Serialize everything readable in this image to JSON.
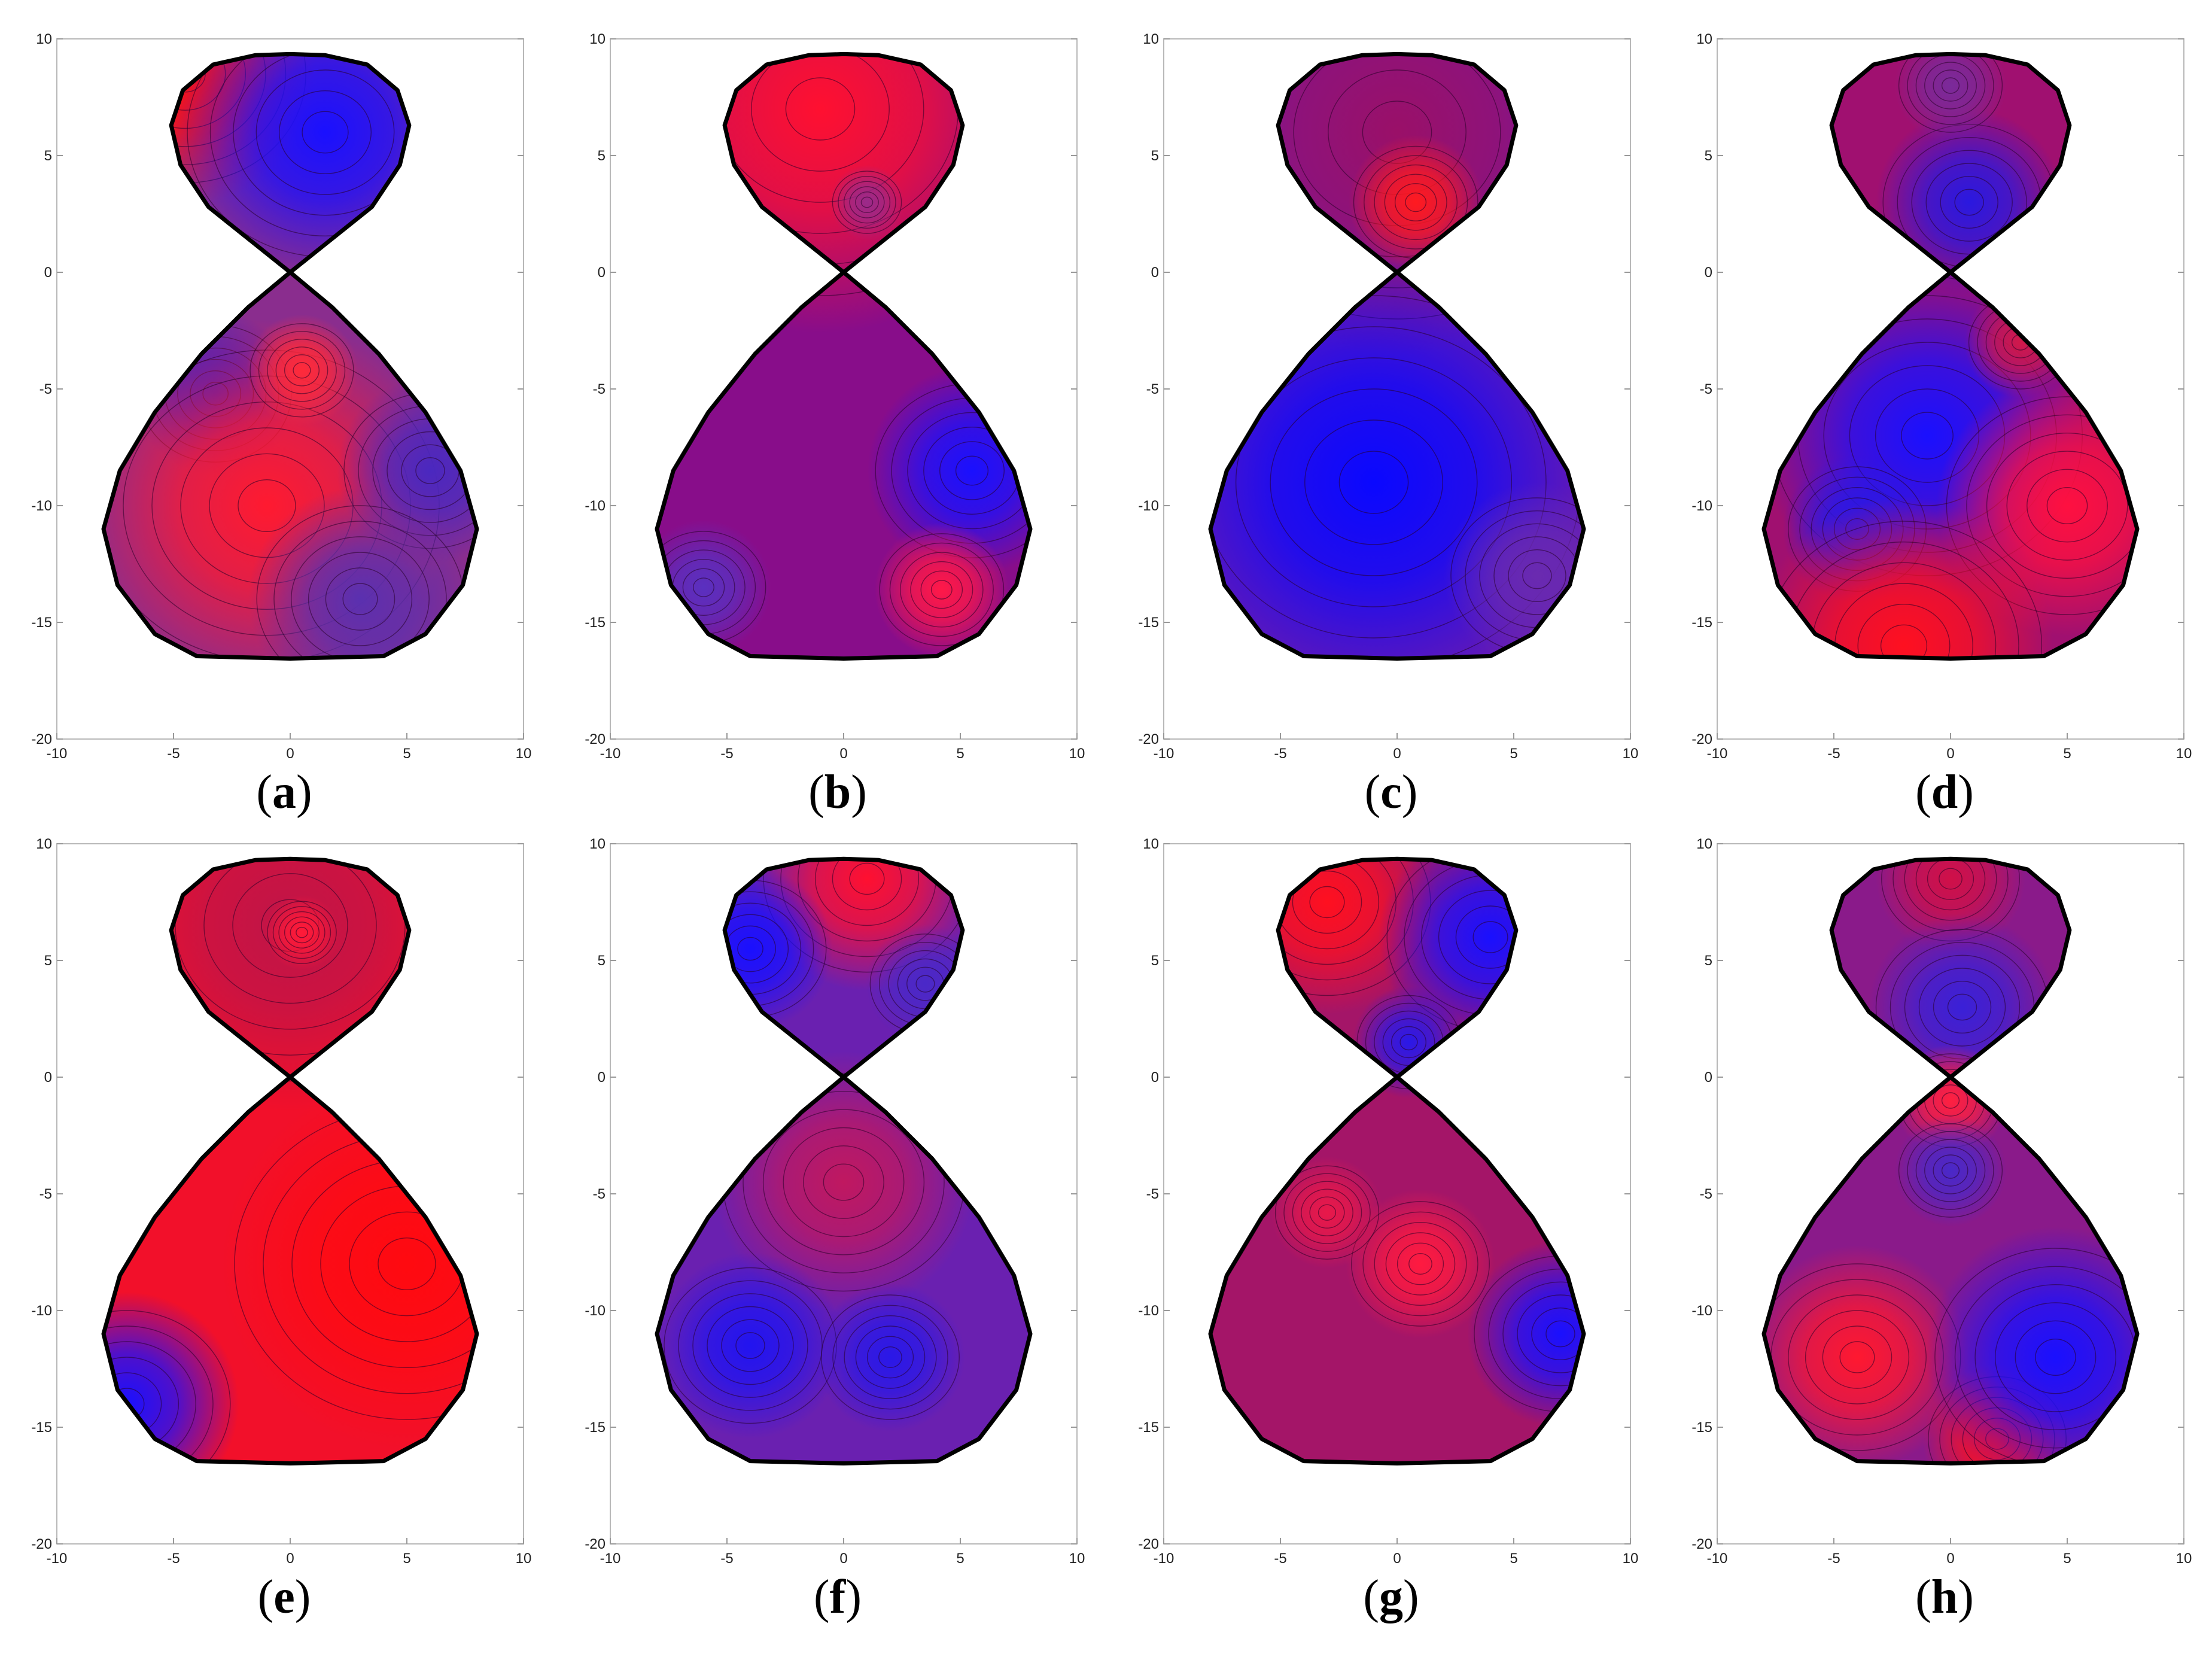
{
  "chart_data": [
    {
      "type": "heatmap",
      "panel_label": "a",
      "caption_open": "(",
      "caption_close": ")",
      "xlim": [
        -10,
        10
      ],
      "ylim": [
        -20,
        10
      ],
      "x_ticks": [
        "-10",
        "-5",
        "0",
        "5",
        "10"
      ],
      "y_ticks": [
        "10",
        "5",
        "0",
        "-5",
        "-10",
        "-15",
        "-20"
      ],
      "base_color": "#8a2d8e",
      "hotspots": [
        {
          "x": -4.5,
          "y": 8.5,
          "r": 3.5,
          "color": "#ff1010"
        },
        {
          "x": 1.5,
          "y": 6,
          "r": 4,
          "color": "#1a10ff"
        },
        {
          "x": -3.2,
          "y": -5.2,
          "r": 2.2,
          "color": "#3020d0"
        },
        {
          "x": -1,
          "y": -10,
          "r": 5,
          "color": "#ff1a30"
        },
        {
          "x": 0.5,
          "y": -4.2,
          "r": 1.5,
          "color": "#ff2a3a"
        },
        {
          "x": 6,
          "y": -8.5,
          "r": 2.5,
          "color": "#4a28c0"
        },
        {
          "x": 3,
          "y": -14,
          "r": 3,
          "color": "#5a30b0"
        }
      ]
    },
    {
      "type": "heatmap",
      "panel_label": "b",
      "caption_open": "(",
      "caption_close": ")",
      "xlim": [
        -10,
        10
      ],
      "ylim": [
        -20,
        10
      ],
      "x_ticks": [
        "-10",
        "-5",
        "0",
        "5",
        "10"
      ],
      "y_ticks": [
        "10",
        "5",
        "0",
        "-5",
        "-10",
        "-15",
        "-20"
      ],
      "base_color": "#880d8a",
      "hotspots": [
        {
          "x": -1,
          "y": 7,
          "r": 6,
          "color": "#ff1030"
        },
        {
          "x": 1,
          "y": 3,
          "r": 1,
          "color": "#9a2a8a"
        },
        {
          "x": 5.5,
          "y": -8.5,
          "r": 2.8,
          "color": "#1a10ff"
        },
        {
          "x": 4.2,
          "y": -13.6,
          "r": 1.8,
          "color": "#ff1848"
        },
        {
          "x": -6,
          "y": -13.5,
          "r": 1.8,
          "color": "#5a30c0"
        }
      ]
    },
    {
      "type": "heatmap",
      "panel_label": "c",
      "caption_open": "(",
      "caption_close": ")",
      "xlim": [
        -10,
        10
      ],
      "ylim": [
        -20,
        10
      ],
      "x_ticks": [
        "-10",
        "-5",
        "0",
        "5",
        "10"
      ],
      "y_ticks": [
        "10",
        "5",
        "0",
        "-5",
        "-10",
        "-15",
        "-20"
      ],
      "base_color": "#6a1ab0",
      "hotspots": [
        {
          "x": 0,
          "y": 6,
          "r": 6,
          "color": "#9a1068"
        },
        {
          "x": 0.8,
          "y": 3,
          "r": 1.8,
          "color": "#ff1a20"
        },
        {
          "x": -1,
          "y": -9,
          "r": 6,
          "color": "#0a08ff"
        },
        {
          "x": 6,
          "y": -13,
          "r": 2.5,
          "color": "#6a2ab0"
        }
      ]
    },
    {
      "type": "heatmap",
      "panel_label": "d",
      "caption_open": "(",
      "caption_close": ")",
      "xlim": [
        -10,
        10
      ],
      "ylim": [
        -20,
        10
      ],
      "x_ticks": [
        "-10",
        "-5",
        "0",
        "5",
        "10"
      ],
      "y_ticks": [
        "10",
        "5",
        "0",
        "-5",
        "-10",
        "-15",
        "-20"
      ],
      "base_color": "#a01070",
      "hotspots": [
        {
          "x": 0.8,
          "y": 3,
          "r": 2.5,
          "color": "#2a18e0"
        },
        {
          "x": 0,
          "y": 8,
          "r": 1.5,
          "color": "#7a2a9a"
        },
        {
          "x": -1,
          "y": -7,
          "r": 4.5,
          "color": "#1a10ff"
        },
        {
          "x": -4,
          "y": -11,
          "r": 2,
          "color": "#2818e8"
        },
        {
          "x": 5,
          "y": -10,
          "r": 3.5,
          "color": "#ff1040"
        },
        {
          "x": -2,
          "y": -16,
          "r": 4,
          "color": "#ff1020"
        },
        {
          "x": 3,
          "y": -3,
          "r": 1.5,
          "color": "#d0184a"
        }
      ]
    },
    {
      "type": "heatmap",
      "panel_label": "e",
      "caption_open": "(",
      "caption_close": ")",
      "xlim": [
        -10,
        10
      ],
      "ylim": [
        -20,
        10
      ],
      "x_ticks": [
        "-10",
        "-5",
        "0",
        "5",
        "10"
      ],
      "y_ticks": [
        "10",
        "5",
        "0",
        "-5",
        "-10",
        "-15",
        "-20"
      ],
      "base_color": "#f2102a",
      "hotspots": [
        {
          "x": 0,
          "y": 6.5,
          "r": 5,
          "color": "#c01448"
        },
        {
          "x": 0.5,
          "y": 6.2,
          "r": 1,
          "color": "#ff1a38"
        },
        {
          "x": -7,
          "y": -14,
          "r": 3,
          "color": "#1a10ff"
        },
        {
          "x": 5,
          "y": -8,
          "r": 5,
          "color": "#ff0a10"
        }
      ]
    },
    {
      "type": "heatmap",
      "panel_label": "f",
      "caption_open": "(",
      "caption_close": ")",
      "xlim": [
        -10,
        10
      ],
      "ylim": [
        -20,
        10
      ],
      "x_ticks": [
        "-10",
        "-5",
        "0",
        "5",
        "10"
      ],
      "y_ticks": [
        "10",
        "5",
        "0",
        "-5",
        "-10",
        "-15",
        "-20"
      ],
      "base_color": "#6a20b0",
      "hotspots": [
        {
          "x": 1,
          "y": 8.5,
          "r": 3,
          "color": "#ff1030"
        },
        {
          "x": -4,
          "y": 5.5,
          "r": 2.2,
          "color": "#1a10ff"
        },
        {
          "x": 3.5,
          "y": 4,
          "r": 1.6,
          "color": "#4a28c8"
        },
        {
          "x": 0,
          "y": -4.5,
          "r": 3.5,
          "color": "#c01860"
        },
        {
          "x": -4,
          "y": -11.5,
          "r": 2.5,
          "color": "#2214f0"
        },
        {
          "x": 2,
          "y": -12,
          "r": 2,
          "color": "#2a18e8"
        }
      ]
    },
    {
      "type": "heatmap",
      "panel_label": "g",
      "caption_open": "(",
      "caption_close": ")",
      "xlim": [
        -10,
        10
      ],
      "ylim": [
        -20,
        10
      ],
      "x_ticks": [
        "-10",
        "-5",
        "0",
        "5",
        "10"
      ],
      "y_ticks": [
        "10",
        "5",
        "0",
        "-5",
        "-10",
        "-15",
        "-20"
      ],
      "base_color": "#a41568",
      "hotspots": [
        {
          "x": -3,
          "y": 7.5,
          "r": 3,
          "color": "#ff1020"
        },
        {
          "x": 4,
          "y": 6,
          "r": 3,
          "color": "#1a10ff"
        },
        {
          "x": 0.5,
          "y": 1.5,
          "r": 1.5,
          "color": "#2a18e8"
        },
        {
          "x": 1,
          "y": -8,
          "r": 2,
          "color": "#ff1a40"
        },
        {
          "x": -3,
          "y": -5.8,
          "r": 1.5,
          "color": "#e8184a"
        },
        {
          "x": 7,
          "y": -11,
          "r": 2.5,
          "color": "#1a10ff"
        }
      ]
    },
    {
      "type": "heatmap",
      "panel_label": "h",
      "caption_open": "(",
      "caption_close": ")",
      "xlim": [
        -10,
        10
      ],
      "ylim": [
        -20,
        10
      ],
      "x_ticks": [
        "-10",
        "-5",
        "0",
        "5",
        "10"
      ],
      "y_ticks": [
        "10",
        "5",
        "0",
        "-5",
        "-10",
        "-15",
        "-20"
      ],
      "base_color": "#8a1a8a",
      "hotspots": [
        {
          "x": 0,
          "y": 8.5,
          "r": 2,
          "color": "#d01048"
        },
        {
          "x": 0.5,
          "y": 3,
          "r": 2.5,
          "color": "#3a20d8"
        },
        {
          "x": -4,
          "y": -12,
          "r": 3,
          "color": "#ff1830"
        },
        {
          "x": 2,
          "y": -15.5,
          "r": 2,
          "color": "#ff1020"
        },
        {
          "x": 4.5,
          "y": -12,
          "r": 3.5,
          "color": "#1a10ff"
        },
        {
          "x": 0,
          "y": -1,
          "r": 1.5,
          "color": "#ff2040"
        },
        {
          "x": 0,
          "y": -4,
          "r": 1.5,
          "color": "#4a28c8"
        }
      ]
    }
  ]
}
